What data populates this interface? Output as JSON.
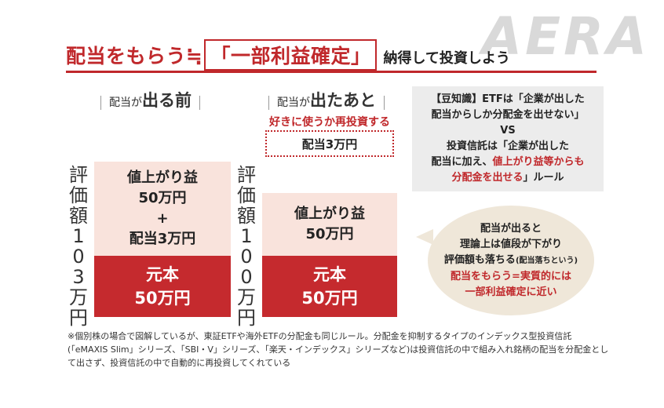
{
  "logo": "AERA",
  "title": {
    "part1": "配当をもらう≒",
    "boxed": "「一部利益確定」",
    "sub": "納得して投資しよう"
  },
  "before": {
    "head_small": "配当が",
    "head_big": "出る前",
    "vertical_label": [
      "評",
      "価",
      "額",
      "1",
      "0",
      "3",
      "万",
      "円"
    ],
    "gain_lines": [
      "値上がり益",
      "50万円",
      "+",
      "配当3万円"
    ],
    "principal_lines": [
      "元本",
      "50万円"
    ]
  },
  "after": {
    "head_small": "配当が",
    "head_big": "出たあと",
    "reinvest_label": "好きに使うか再投資する",
    "dividend_box": "配当3万円",
    "vertical_label": [
      "評",
      "価",
      "額",
      "1",
      "0",
      "0",
      "万",
      "円"
    ],
    "gain_lines": [
      "値上がり益",
      "50万円"
    ],
    "principal_lines": [
      "元本",
      "50万円"
    ]
  },
  "info": {
    "line1": "【豆知識】ETFは「企業が出した",
    "line2": "配当からしか分配金を出せない」",
    "line3": "VS",
    "line4": "投資信託は「企業が出した",
    "line5a": "配当に加え、",
    "line5b": "値上がり益等からも",
    "line6a": "分配金を出せる",
    "line6b": "」ルール"
  },
  "bubble": {
    "line1": "配当が出ると",
    "line2": "理論上は値段が下がり",
    "line3a": "評価額も落ちる",
    "line3b": "(配当落ちという)",
    "line4": "配当をもらう=実質的には",
    "line5": "一部利益確定に近い"
  },
  "footnote": "※個別株の場合で図解しているが、東証ETFや海外ETFの分配金も同じルール。分配金を抑制するタイプのインデックス型投資信託(「eMAXIS Slim」シリーズ、「SBI・V」シリーズ、「楽天・インデックス」シリーズなど)は投資信託の中で組み入れ銘柄の配当を分配金として出さず、投資信託の中で自動的に再投資してくれている",
  "colors": {
    "accent_red": "#c0282b",
    "principal_red": "#c52a2e",
    "gain_pink": "#f9e3dc",
    "info_gray": "#ececec",
    "bubble_beige": "#efe7d9"
  }
}
